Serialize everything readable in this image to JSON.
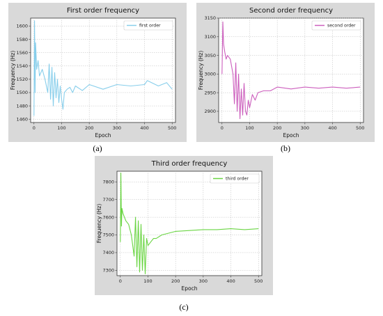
{
  "captions": [
    "(a)",
    "(b)",
    "(c)"
  ],
  "chart_data": [
    {
      "type": "line",
      "title": "First order frequency",
      "xlabel": "Epoch",
      "ylabel": "Frequency (Hz)",
      "xlim": [
        -12,
        512
      ],
      "ylim": [
        1455,
        1612
      ],
      "xticks": [
        0,
        100,
        200,
        300,
        400,
        500
      ],
      "yticks": [
        1460,
        1480,
        1500,
        1520,
        1540,
        1560,
        1580,
        1600
      ],
      "grid": true,
      "legend": "top-right",
      "series": [
        {
          "name": "first order",
          "color": "#87ceeb",
          "x": [
            0,
            2,
            4,
            6,
            10,
            15,
            20,
            30,
            40,
            50,
            55,
            60,
            65,
            70,
            75,
            80,
            85,
            90,
            95,
            100,
            105,
            110,
            120,
            130,
            140,
            150,
            175,
            200,
            250,
            300,
            350,
            400,
            410,
            450,
            480,
            500
          ],
          "y": [
            1465,
            1608,
            1500,
            1575,
            1535,
            1548,
            1525,
            1535,
            1520,
            1500,
            1543,
            1490,
            1538,
            1480,
            1530,
            1492,
            1520,
            1485,
            1510,
            1490,
            1475,
            1500,
            1505,
            1508,
            1500,
            1510,
            1503,
            1512,
            1505,
            1512,
            1510,
            1512,
            1518,
            1510,
            1515,
            1505
          ]
        }
      ]
    },
    {
      "type": "line",
      "title": "Second order frequency",
      "xlabel": "Epoch",
      "ylabel": "Frequency (Hz)",
      "xlim": [
        -12,
        512
      ],
      "ylim": [
        2870,
        3150
      ],
      "xticks": [
        0,
        100,
        200,
        300,
        400,
        500
      ],
      "yticks": [
        2900,
        2950,
        3000,
        3050,
        3100,
        3150
      ],
      "grid": true,
      "legend": "top-right",
      "series": [
        {
          "name": "second order",
          "color": "#cc5ebd",
          "x": [
            0,
            3,
            6,
            10,
            15,
            20,
            30,
            40,
            45,
            50,
            55,
            60,
            65,
            70,
            75,
            80,
            85,
            90,
            95,
            100,
            110,
            120,
            130,
            150,
            175,
            200,
            250,
            300,
            350,
            400,
            450,
            500
          ],
          "y": [
            3000,
            3140,
            3080,
            3060,
            3040,
            3050,
            3040,
            3000,
            2920,
            3030,
            2900,
            3000,
            2880,
            2960,
            2890,
            2975,
            2900,
            2890,
            2930,
            2910,
            2945,
            2930,
            2950,
            2955,
            2955,
            2965,
            2960,
            2965,
            2962,
            2965,
            2962,
            2965
          ]
        }
      ]
    },
    {
      "type": "line",
      "title": "Third order frequency",
      "xlabel": "Epoch",
      "ylabel": "Frequency (Hz)",
      "xlim": [
        -12,
        512
      ],
      "ylim": [
        7270,
        7860
      ],
      "xticks": [
        0,
        100,
        200,
        300,
        400,
        500
      ],
      "yticks": [
        7300,
        7400,
        7500,
        7600,
        7700,
        7800
      ],
      "grid": true,
      "legend": "top-right",
      "series": [
        {
          "name": "third order",
          "color": "#6ad543",
          "x": [
            0,
            2,
            4,
            6,
            10,
            15,
            20,
            30,
            40,
            50,
            55,
            60,
            65,
            70,
            75,
            80,
            85,
            90,
            95,
            100,
            110,
            120,
            130,
            150,
            175,
            200,
            250,
            300,
            350,
            400,
            450,
            500
          ],
          "y": [
            7460,
            7850,
            7550,
            7650,
            7620,
            7600,
            7580,
            7560,
            7500,
            7380,
            7600,
            7320,
            7580,
            7290,
            7560,
            7300,
            7500,
            7280,
            7480,
            7440,
            7460,
            7480,
            7480,
            7500,
            7510,
            7520,
            7525,
            7530,
            7530,
            7535,
            7530,
            7535
          ]
        }
      ]
    }
  ]
}
